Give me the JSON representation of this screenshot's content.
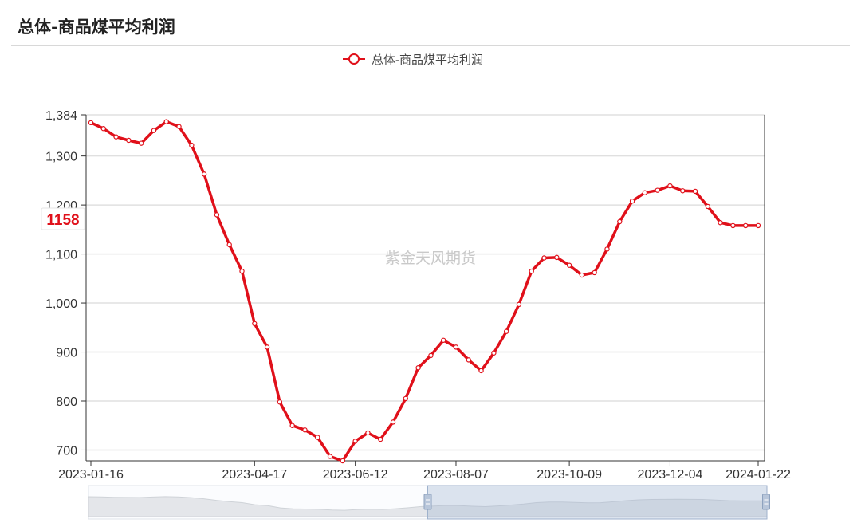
{
  "header": {
    "title": "总体-商品煤平均利润"
  },
  "chart_data": {
    "type": "line",
    "legend": {
      "label": "总体-商品煤平均利润",
      "position": "top-center"
    },
    "watermark": "紫金天风期货",
    "y_axis": {
      "ticks": [
        700,
        800,
        900,
        1000,
        1100,
        1200,
        1300,
        1384
      ],
      "tick_labels": [
        "700",
        "800",
        "900",
        "1,000",
        "1,100",
        "1,200",
        "1,300",
        "1,384"
      ],
      "ylim": [
        678,
        1384
      ],
      "grid": true
    },
    "x_axis": {
      "tick_labels": [
        "2023-01-16",
        "2023-04-17",
        "2023-06-12",
        "2023-08-07",
        "2023-10-09",
        "2023-12-04",
        "2024-01-22"
      ],
      "tick_index": [
        0,
        13,
        18,
        23,
        28,
        33,
        37
      ]
    },
    "last_value_label": "1158",
    "series": [
      {
        "name": "总体-商品煤平均利润",
        "color": "#e0101a",
        "x": [
          "2023-01-16",
          "2023-01-23",
          "2023-01-30",
          "2023-02-06",
          "2023-02-13",
          "2023-02-20",
          "2023-02-27",
          "2023-03-06",
          "2023-03-13",
          "2023-03-20",
          "2023-03-27",
          "2023-04-03",
          "2023-04-10",
          "2023-04-17",
          "2023-04-24",
          "2023-05-01",
          "2023-05-08",
          "2023-05-15",
          "2023-05-22",
          "2023-05-29",
          "2023-06-05",
          "2023-06-12",
          "2023-06-19",
          "2023-06-26",
          "2023-07-03",
          "2023-07-10",
          "2023-07-17",
          "2023-07-24",
          "2023-07-31",
          "2023-08-07",
          "2023-08-14",
          "2023-08-21",
          "2023-08-28",
          "2023-09-04",
          "2023-09-11",
          "2023-09-18",
          "2023-09-25",
          "2023-10-02",
          "2023-10-09",
          "2023-10-16",
          "2023-10-23",
          "2023-10-30",
          "2023-11-06",
          "2023-11-13",
          "2023-11-20",
          "2023-11-27",
          "2023-12-04",
          "2023-12-11",
          "2023-12-18",
          "2023-12-25",
          "2024-01-01",
          "2024-01-08",
          "2024-01-15",
          "2024-01-22"
        ],
        "values": [
          1368,
          1356,
          1339,
          1332,
          1326,
          1352,
          1370,
          1360,
          1322,
          1263,
          1180,
          1119,
          1065,
          958,
          910,
          798,
          750,
          741,
          726,
          687,
          678,
          718,
          735,
          722,
          757,
          805,
          868,
          893,
          924,
          910,
          884,
          862,
          898,
          942,
          997,
          1065,
          1092,
          1093,
          1077,
          1057,
          1062,
          1110,
          1166,
          1208,
          1225,
          1230,
          1239,
          1229,
          1228,
          1197,
          1164,
          1158,
          1158,
          1158
        ]
      }
    ],
    "data_zoom": {
      "start": 0.5,
      "end": 1.0
    }
  }
}
